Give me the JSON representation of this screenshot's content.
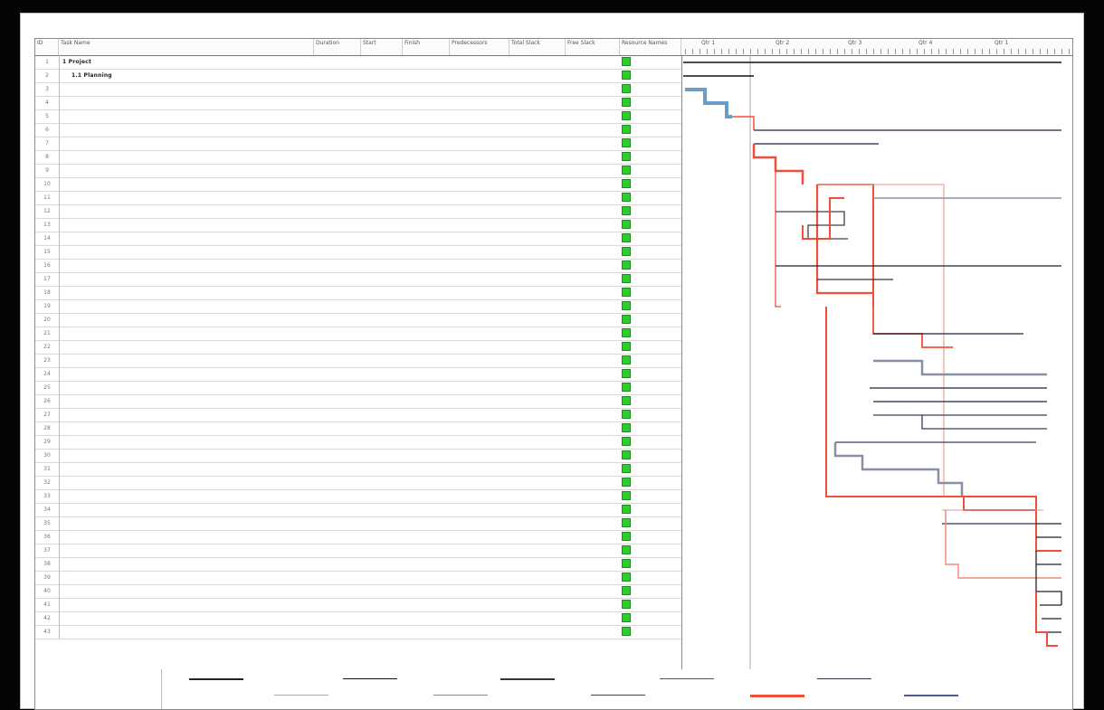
{
  "header": {
    "columns": [
      "ID",
      "Task Name",
      "Duration",
      "Start",
      "Finish",
      "Predecessors",
      "Total Slack",
      "Free Slack",
      "Resource Names"
    ]
  },
  "timescale": {
    "labels": [
      "Qtr 1",
      "Qtr 2",
      "Qtr 3",
      "Qtr 4",
      "Qtr 1"
    ]
  },
  "tasks": [
    {
      "id": "1",
      "level": 0,
      "summary": true,
      "name": "1 Project",
      "dur": "",
      "start": "",
      "finish": "",
      "pred": "",
      "c5": "",
      "c6": ""
    },
    {
      "id": "2",
      "level": 1,
      "summary": true,
      "name": "1.1 Planning",
      "dur": "",
      "start": "",
      "finish": "",
      "pred": "",
      "c5": "",
      "c6": ""
    },
    {
      "id": "3",
      "level": 2,
      "summary": false,
      "name": "",
      "dur": "",
      "start": "",
      "finish": "",
      "pred": "",
      "c5": "",
      "c6": ""
    },
    {
      "id": "4",
      "level": 2,
      "summary": false,
      "name": "",
      "dur": "",
      "start": "",
      "finish": "",
      "pred": "",
      "c5": "",
      "c6": ""
    },
    {
      "id": "5",
      "level": 2,
      "summary": false,
      "name": "",
      "dur": "",
      "start": "",
      "finish": "",
      "pred": "",
      "c5": "",
      "c6": ""
    },
    {
      "id": "6",
      "level": 1,
      "summary": true,
      "name": "",
      "dur": "",
      "start": "",
      "finish": "",
      "pred": "",
      "c5": "",
      "c6": ""
    },
    {
      "id": "7",
      "level": 1,
      "summary": true,
      "name": "",
      "dur": "",
      "start": "",
      "finish": "",
      "pred": "",
      "c5": "",
      "c6": ""
    },
    {
      "id": "8",
      "level": 2,
      "summary": false,
      "name": "",
      "dur": "",
      "start": "",
      "finish": "",
      "pred": "",
      "c5": "",
      "c6": ""
    },
    {
      "id": "9",
      "level": 2,
      "summary": false,
      "name": "",
      "dur": "",
      "start": "",
      "finish": "",
      "pred": "",
      "c5": "",
      "c6": ""
    },
    {
      "id": "10",
      "level": 2,
      "summary": false,
      "name": "",
      "dur": "",
      "start": "",
      "finish": "",
      "pred": "",
      "c5": "",
      "c6": ""
    },
    {
      "id": "11",
      "level": 2,
      "summary": false,
      "name": "",
      "dur": "",
      "start": "",
      "finish": "",
      "pred": "",
      "c5": "",
      "c6": ""
    },
    {
      "id": "12",
      "level": 1,
      "summary": true,
      "name": "",
      "dur": "",
      "start": "",
      "finish": "",
      "pred": "",
      "c5": "",
      "c6": ""
    },
    {
      "id": "13",
      "level": 2,
      "summary": false,
      "name": "",
      "dur": "",
      "start": "",
      "finish": "",
      "pred": "",
      "c5": "",
      "c6": ""
    },
    {
      "id": "14",
      "level": 2,
      "summary": false,
      "name": "",
      "dur": "",
      "start": "",
      "finish": "",
      "pred": "",
      "c5": "",
      "c6": ""
    },
    {
      "id": "15",
      "level": 2,
      "summary": false,
      "name": "",
      "dur": "",
      "start": "",
      "finish": "",
      "pred": "",
      "c5": "",
      "c6": ""
    },
    {
      "id": "16",
      "level": 1,
      "summary": true,
      "name": "",
      "dur": "",
      "start": "",
      "finish": "",
      "pred": "",
      "c5": "",
      "c6": ""
    },
    {
      "id": "17",
      "level": 2,
      "summary": false,
      "name": "",
      "dur": "",
      "start": "",
      "finish": "",
      "pred": "",
      "c5": "",
      "c6": ""
    },
    {
      "id": "18",
      "level": 2,
      "summary": false,
      "name": "",
      "dur": "",
      "start": "",
      "finish": "",
      "pred": "",
      "c5": "",
      "c6": ""
    },
    {
      "id": "19",
      "level": 1,
      "summary": true,
      "name": "",
      "dur": "",
      "start": "",
      "finish": "",
      "pred": "",
      "c5": "",
      "c6": ""
    },
    {
      "id": "20",
      "level": 2,
      "summary": false,
      "name": "",
      "dur": "",
      "start": "",
      "finish": "",
      "pred": "",
      "c5": "",
      "c6": ""
    },
    {
      "id": "21",
      "level": 2,
      "summary": false,
      "name": "",
      "dur": "",
      "start": "",
      "finish": "",
      "pred": "",
      "c5": "",
      "c6": ""
    },
    {
      "id": "22",
      "level": 2,
      "summary": false,
      "name": "",
      "dur": "",
      "start": "",
      "finish": "",
      "pred": "",
      "c5": "",
      "c6": ""
    },
    {
      "id": "23",
      "level": 1,
      "summary": true,
      "name": "",
      "dur": "",
      "start": "",
      "finish": "",
      "pred": "",
      "c5": "",
      "c6": ""
    },
    {
      "id": "24",
      "level": 2,
      "summary": false,
      "name": "",
      "dur": "",
      "start": "",
      "finish": "",
      "pred": "",
      "c5": "",
      "c6": ""
    },
    {
      "id": "25",
      "level": 2,
      "summary": false,
      "name": "",
      "dur": "",
      "start": "",
      "finish": "",
      "pred": "",
      "c5": "",
      "c6": ""
    },
    {
      "id": "26",
      "level": 2,
      "summary": false,
      "name": "",
      "dur": "",
      "start": "",
      "finish": "",
      "pred": "",
      "c5": "",
      "c6": ""
    },
    {
      "id": "27",
      "level": 1,
      "summary": true,
      "name": "",
      "dur": "",
      "start": "",
      "finish": "",
      "pred": "",
      "c5": "",
      "c6": ""
    },
    {
      "id": "28",
      "level": 2,
      "summary": false,
      "name": "",
      "dur": "",
      "start": "",
      "finish": "",
      "pred": "",
      "c5": "",
      "c6": ""
    },
    {
      "id": "29",
      "level": 2,
      "summary": false,
      "name": "",
      "dur": "",
      "start": "",
      "finish": "",
      "pred": "",
      "c5": "",
      "c6": ""
    },
    {
      "id": "30",
      "level": 2,
      "summary": false,
      "name": "",
      "dur": "",
      "start": "",
      "finish": "",
      "pred": "",
      "c5": "",
      "c6": ""
    },
    {
      "id": "31",
      "level": 2,
      "summary": false,
      "name": "",
      "dur": "",
      "start": "",
      "finish": "",
      "pred": "",
      "c5": "",
      "c6": ""
    },
    {
      "id": "32",
      "level": 2,
      "summary": false,
      "name": "",
      "dur": "",
      "start": "",
      "finish": "",
      "pred": "",
      "c5": "",
      "c6": ""
    },
    {
      "id": "33",
      "level": 1,
      "summary": false,
      "name": "",
      "dur": "",
      "start": "",
      "finish": "",
      "pred": "",
      "c5": "",
      "c6": ""
    },
    {
      "id": "34",
      "level": 1,
      "summary": true,
      "name": "",
      "dur": "",
      "start": "",
      "finish": "",
      "pred": "",
      "c5": "",
      "c6": ""
    },
    {
      "id": "35",
      "level": 2,
      "summary": false,
      "name": "",
      "dur": "",
      "start": "",
      "finish": "",
      "pred": "",
      "c5": "",
      "c6": ""
    },
    {
      "id": "36",
      "level": 2,
      "summary": false,
      "name": "",
      "dur": "",
      "start": "",
      "finish": "",
      "pred": "",
      "c5": "",
      "c6": ""
    },
    {
      "id": "37",
      "level": 2,
      "summary": false,
      "name": "",
      "dur": "",
      "start": "",
      "finish": "",
      "pred": "",
      "c5": "",
      "c6": ""
    },
    {
      "id": "38",
      "level": 2,
      "summary": false,
      "name": "",
      "dur": "",
      "start": "",
      "finish": "",
      "pred": "",
      "c5": "",
      "c6": ""
    },
    {
      "id": "39",
      "level": 1,
      "summary": true,
      "name": "",
      "dur": "",
      "start": "",
      "finish": "",
      "pred": "",
      "c5": "",
      "c6": ""
    },
    {
      "id": "40",
      "level": 2,
      "summary": false,
      "name": "",
      "dur": "",
      "start": "",
      "finish": "",
      "pred": "",
      "c5": "",
      "c6": ""
    },
    {
      "id": "41",
      "level": 2,
      "summary": false,
      "name": "",
      "dur": "",
      "start": "",
      "finish": "",
      "pred": "",
      "c5": "",
      "c6": ""
    },
    {
      "id": "42",
      "level": 2,
      "summary": false,
      "name": "",
      "dur": "",
      "start": "",
      "finish": "",
      "pred": "",
      "c5": "",
      "c6": ""
    },
    {
      "id": "43",
      "level": 2,
      "summary": false,
      "name": "",
      "dur": "",
      "start": "",
      "finish": "",
      "pred": "",
      "c5": "",
      "c6": ""
    }
  ],
  "legend": {
    "project_label": "",
    "date_label": "",
    "items": [
      "",
      "",
      "",
      "",
      "",
      "",
      "",
      "",
      "",
      "",
      "",
      "",
      "",
      "",
      ""
    ]
  },
  "colors": {
    "critical": "#f0503a",
    "normal_link": "#22223a",
    "bar_blue": "#6a9cc8",
    "bar_gray": "#8a8fa8",
    "flag_green": "#2ecc2e"
  }
}
